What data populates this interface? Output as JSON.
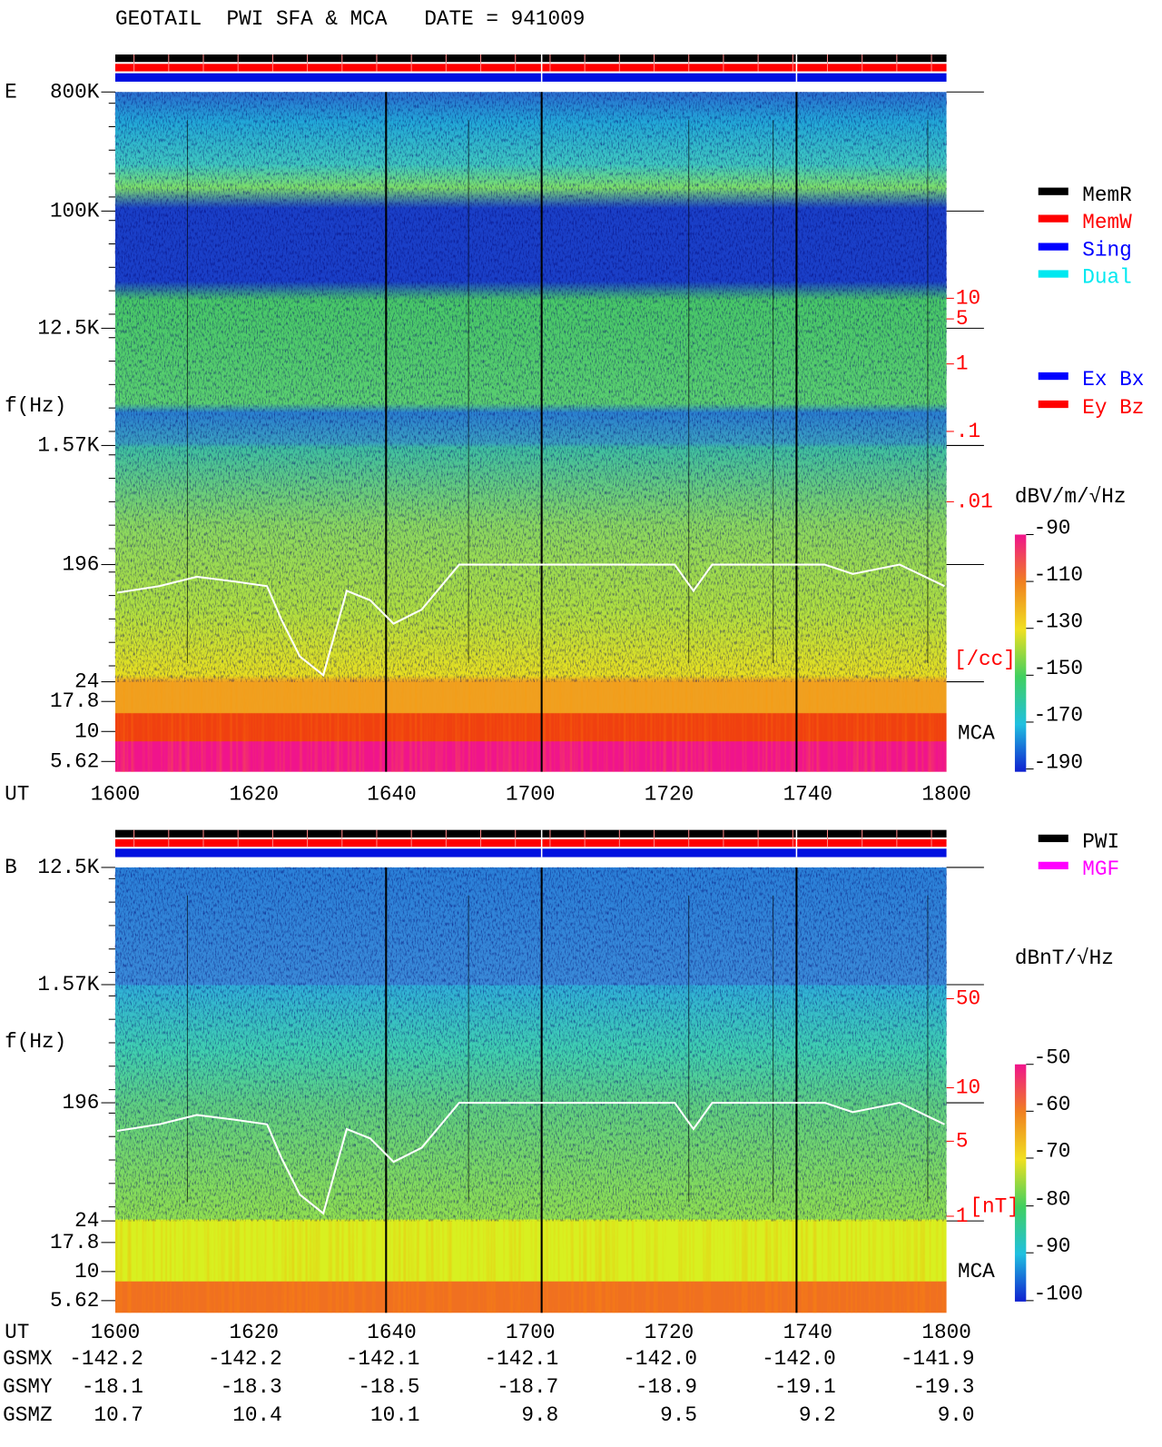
{
  "title": "GEOTAIL  PWI SFA & MCA   DATE = 941009",
  "panels": [
    {
      "label": "E",
      "axis_label": "f(Hz)",
      "frequency_ticks": [
        "800K",
        "100K",
        "12.5K",
        "1.57K",
        "196",
        "24",
        "17.8",
        "10",
        "5.62"
      ],
      "time_label": "UT",
      "time_ticks": [
        "1600",
        "1620",
        "1640",
        "1700",
        "1720",
        "1740",
        "1800"
      ],
      "right_ticks": [
        "10",
        "5",
        "1",
        ".1",
        ".01"
      ],
      "right_unit": "[/cc]",
      "mca_label": "MCA",
      "colorbar_unit": "dBV/m/√Hz",
      "colorbar_ticks": [
        "-90",
        "-110",
        "-130",
        "-150",
        "-170",
        "-190"
      ]
    },
    {
      "label": "B",
      "axis_label": "f(Hz)",
      "frequency_ticks": [
        "12.5K",
        "1.57K",
        "196",
        "24",
        "17.8",
        "10",
        "5.62"
      ],
      "right_ticks": [
        "50",
        "10",
        "5",
        "1"
      ],
      "right_unit": "[nT]",
      "mca_label": "MCA",
      "colorbar_unit": "dBnT/√Hz",
      "colorbar_ticks": [
        "-50",
        "-60",
        "-70",
        "-80",
        "-90",
        "-100"
      ]
    }
  ],
  "legends": {
    "mode": [
      {
        "name": "MemR",
        "color": "#000000"
      },
      {
        "name": "MemW",
        "color": "#ff0000"
      },
      {
        "name": "Sing",
        "color": "#0000ff"
      },
      {
        "name": "Dual",
        "color": "#00e8f0"
      }
    ],
    "antenna": [
      {
        "name": "Ex Bx",
        "color": "#0000ff"
      },
      {
        "name": "Ey Bz",
        "color": "#ff0000"
      }
    ],
    "source": [
      {
        "name": "PWI",
        "color": "#000000"
      },
      {
        "name": "MGF",
        "color": "#ff00ff"
      }
    ]
  },
  "orbit": {
    "time_label": "UT",
    "time_ticks": [
      "1600",
      "1620",
      "1640",
      "1700",
      "1720",
      "1740",
      "1800"
    ],
    "rows": [
      {
        "name": "GSMX",
        "values": [
          "-142.2",
          "-142.2",
          "-142.1",
          "-142.1",
          "-142.0",
          "-142.0",
          "-141.9"
        ]
      },
      {
        "name": "GSMY",
        "values": [
          "-18.1",
          "-18.3",
          "-18.5",
          "-18.7",
          "-18.9",
          "-19.1",
          "-19.3"
        ]
      },
      {
        "name": "GSMZ",
        "values": [
          "10.7",
          "10.4",
          "10.1",
          "9.8",
          "9.5",
          "9.2",
          "9.0"
        ]
      }
    ]
  }
}
